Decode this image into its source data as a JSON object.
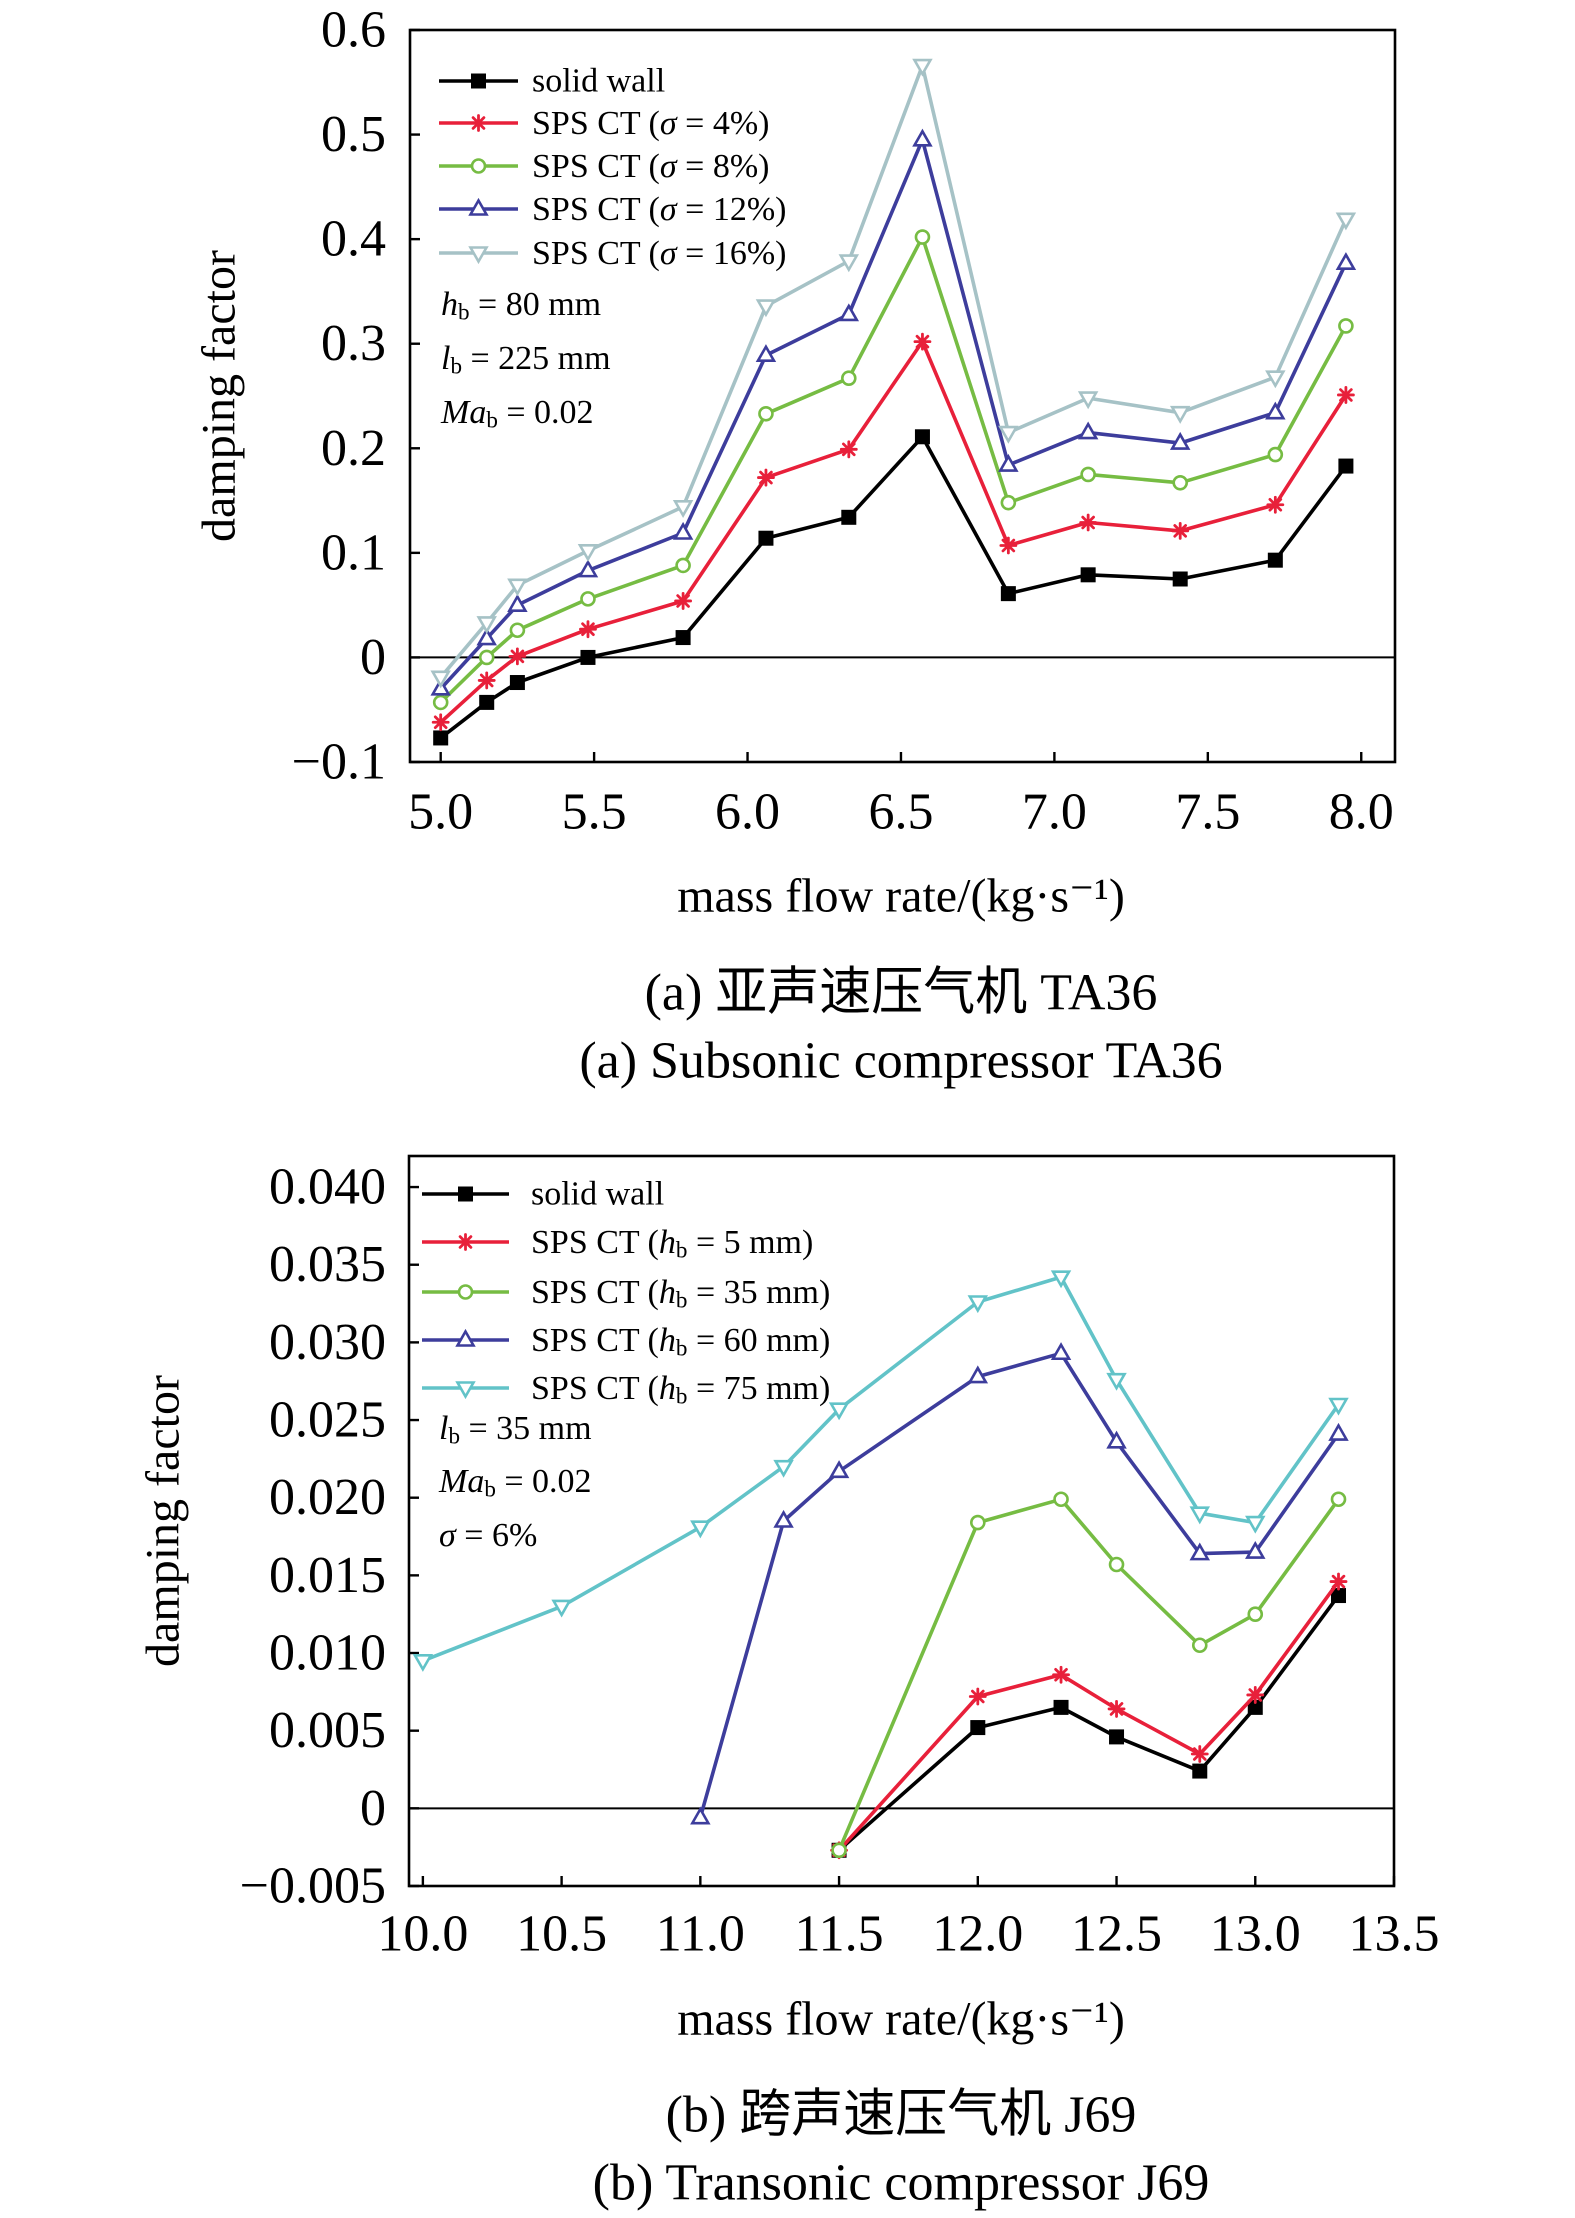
{
  "chart_data": [
    {
      "type": "line",
      "xlabel": "mass flow rate/(kg·s⁻¹)",
      "ylabel": "damping factor",
      "xlim": [
        4.9,
        8.11
      ],
      "ylim": [
        -0.1,
        0.6
      ],
      "xticks": [
        "5.0",
        "5.5",
        "6.0",
        "6.5",
        "7.0",
        "7.5",
        "8.0"
      ],
      "yticks": [
        "−0.1",
        "0",
        "0.1",
        "0.2",
        "0.3",
        "0.4",
        "0.5",
        "0.6"
      ],
      "grid": false,
      "zero_line": true,
      "legend": "top-left",
      "series": [
        {
          "name": "solid wall",
          "color": "#000000",
          "marker": "square",
          "x": [
            5.0,
            5.15,
            5.25,
            5.48,
            5.79,
            6.06,
            6.33,
            6.57,
            6.85,
            7.11,
            7.41,
            7.72,
            7.95
          ],
          "y": [
            -0.077,
            -0.043,
            -0.024,
            0.0,
            0.019,
            0.114,
            0.134,
            0.211,
            0.061,
            0.079,
            0.075,
            0.093,
            0.183
          ]
        },
        {
          "name": "SPS CT (σ = 4%)",
          "color": "#e8203a",
          "marker": "asterisk",
          "x": [
            5.0,
            5.15,
            5.25,
            5.48,
            5.79,
            6.06,
            6.33,
            6.57,
            6.85,
            7.11,
            7.41,
            7.72,
            7.95
          ],
          "y": [
            -0.062,
            -0.022,
            0.001,
            0.027,
            0.054,
            0.172,
            0.199,
            0.302,
            0.107,
            0.129,
            0.121,
            0.146,
            0.251
          ]
        },
        {
          "name": "SPS CT (σ = 8%)",
          "color": "#76bc43",
          "marker": "circle",
          "x": [
            5.0,
            5.15,
            5.25,
            5.48,
            5.79,
            6.06,
            6.33,
            6.57,
            6.85,
            7.11,
            7.41,
            7.72,
            7.95
          ],
          "y": [
            -0.043,
            0.0,
            0.026,
            0.056,
            0.088,
            0.233,
            0.267,
            0.402,
            0.148,
            0.175,
            0.167,
            0.194,
            0.317
          ]
        },
        {
          "name": "SPS CT (σ = 12%)",
          "color": "#3d3d9c",
          "marker": "triangle-up",
          "x": [
            5.0,
            5.15,
            5.25,
            5.48,
            5.79,
            6.06,
            6.33,
            6.57,
            6.85,
            7.11,
            7.41,
            7.72,
            7.95
          ],
          "y": [
            -0.03,
            0.018,
            0.05,
            0.083,
            0.119,
            0.289,
            0.328,
            0.495,
            0.184,
            0.215,
            0.205,
            0.234,
            0.377
          ]
        },
        {
          "name": "SPS CT (σ = 16%)",
          "color": "#a6c2c6",
          "marker": "triangle-down",
          "x": [
            5.0,
            5.15,
            5.25,
            5.48,
            5.79,
            6.06,
            6.33,
            6.57,
            6.85,
            7.11,
            7.41,
            7.72,
            7.95
          ],
          "y": [
            -0.019,
            0.033,
            0.069,
            0.102,
            0.144,
            0.336,
            0.379,
            0.566,
            0.215,
            0.248,
            0.234,
            0.268,
            0.419
          ]
        }
      ],
      "annotations": [
        "hb = 80 mm",
        "lb = 225 mm",
        "Mab = 0.02"
      ],
      "caption_zh": "(a) 亚声速压气机 TA36",
      "caption_en": "(a) Subsonic compressor TA36"
    },
    {
      "type": "line",
      "xlabel": "mass flow rate/(kg·s⁻¹)",
      "ylabel": "damping factor",
      "xlim": [
        9.95,
        13.5
      ],
      "ylim": [
        -0.005,
        0.042
      ],
      "xticks": [
        "10.0",
        "10.5",
        "11.0",
        "11.5",
        "12.0",
        "12.5",
        "13.0",
        "13.5"
      ],
      "yticks": [
        "−0.005",
        "0",
        "0.005",
        "0.010",
        "0.015",
        "0.020",
        "0.025",
        "0.030",
        "0.035",
        "0.040"
      ],
      "grid": false,
      "zero_line": true,
      "legend": "top-left",
      "series": [
        {
          "name": "solid wall",
          "color": "#000000",
          "marker": "square",
          "x": [
            11.5,
            12.0,
            12.3,
            12.5,
            12.8,
            13.0,
            13.3
          ],
          "y": [
            -0.0027,
            0.0052,
            0.0065,
            0.0046,
            0.0024,
            0.0065,
            0.0137
          ]
        },
        {
          "name": "SPS CT (hb = 5 mm)",
          "color": "#e8203a",
          "marker": "asterisk",
          "x": [
            11.5,
            12.0,
            12.3,
            12.5,
            12.8,
            13.0,
            13.3
          ],
          "y": [
            -0.0027,
            0.0072,
            0.0086,
            0.0064,
            0.0035,
            0.0073,
            0.0146
          ]
        },
        {
          "name": "SPS CT (hb = 35 mm)",
          "color": "#76bc43",
          "marker": "circle",
          "x": [
            11.5,
            12.0,
            12.3,
            12.5,
            12.8,
            13.0,
            13.3
          ],
          "y": [
            -0.0027,
            0.0184,
            0.0199,
            0.0157,
            0.0105,
            0.0125,
            0.0199
          ]
        },
        {
          "name": "SPS CT (hb = 60 mm)",
          "color": "#3d3d9c",
          "marker": "triangle-up",
          "x": [
            11.0,
            11.3,
            11.5,
            12.0,
            12.3,
            12.5,
            12.8,
            13.0,
            13.3
          ],
          "y": [
            -0.0006,
            0.0185,
            0.0217,
            0.0278,
            0.0293,
            0.0236,
            0.0164,
            0.0165,
            0.0241
          ]
        },
        {
          "name": "SPS CT (hb = 75 mm)",
          "color": "#62c3c8",
          "marker": "triangle-down",
          "x": [
            10.0,
            10.5,
            11.0,
            11.3,
            11.5,
            12.0,
            12.3,
            12.5,
            12.8,
            13.0,
            13.3
          ],
          "y": [
            0.0095,
            0.013,
            0.0181,
            0.022,
            0.0257,
            0.0326,
            0.0342,
            0.0276,
            0.019,
            0.0184,
            0.026
          ]
        }
      ],
      "annotations": [
        "lb = 35 mm",
        "Mab = 0.02",
        "σ = 6%"
      ],
      "caption_zh": "(b) 跨声速压气机 J69",
      "caption_en": "(b) Transonic compressor J69"
    }
  ]
}
